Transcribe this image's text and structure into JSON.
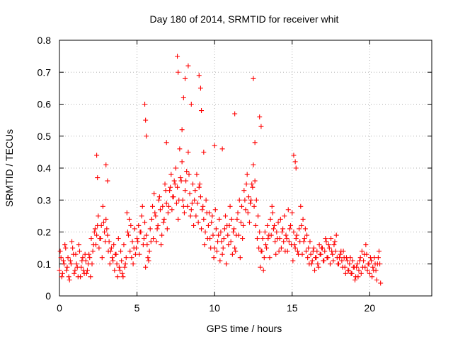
{
  "chart_data": {
    "type": "scatter",
    "title": "Day 180 of 2014, SRMTID for receiver whit",
    "xlabel": "GPS time / hours",
    "ylabel": "SRMTID / TECUs",
    "xlim": [
      0,
      24
    ],
    "ylim": [
      0,
      0.8
    ],
    "xticks": [
      0,
      5,
      10,
      15,
      20
    ],
    "xtick_labels": [
      "0",
      "5",
      "10",
      "15",
      "20"
    ],
    "yticks": [
      0,
      0.1,
      0.2,
      0.3,
      0.4,
      0.5,
      0.6,
      0.7,
      0.8
    ],
    "ytick_labels": [
      "0",
      "0.1",
      "0.2",
      "0.3",
      "0.4",
      "0.5",
      "0.6",
      "0.7",
      "0.8"
    ],
    "grid": true,
    "marker": "+",
    "colors": {
      "series": "#ff0000",
      "grid": "#b0b0b0",
      "axis": "#000000"
    },
    "series": [
      {
        "name": "SRMTID",
        "x": [
          0.0,
          0.1,
          0.2,
          0.3,
          0.4,
          0.5,
          0.6,
          0.7,
          0.8,
          0.9,
          1.0,
          1.1,
          1.2,
          1.3,
          1.4,
          1.5,
          1.6,
          1.7,
          1.8,
          1.9,
          2.0,
          2.1,
          2.2,
          2.3,
          2.4,
          2.5,
          2.6,
          2.7,
          2.8,
          2.9,
          3.0,
          3.1,
          3.2,
          3.3,
          3.4,
          3.5,
          3.6,
          3.7,
          3.8,
          3.9,
          4.0,
          4.1,
          4.2,
          4.3,
          4.4,
          4.5,
          4.6,
          4.7,
          4.8,
          4.9,
          5.0,
          5.1,
          5.2,
          5.3,
          5.4,
          5.5,
          5.6,
          5.7,
          5.8,
          5.9,
          6.0,
          6.1,
          6.2,
          6.3,
          6.4,
          6.5,
          6.6,
          6.7,
          6.8,
          6.9,
          7.0,
          7.1,
          7.2,
          7.3,
          7.4,
          7.5,
          7.6,
          7.7,
          7.8,
          7.9,
          8.0,
          8.1,
          8.2,
          8.3,
          8.4,
          8.5,
          8.6,
          8.7,
          8.8,
          8.9,
          9.0,
          9.1,
          9.2,
          9.3,
          9.4,
          9.5,
          9.6,
          9.7,
          9.8,
          9.9,
          10.0,
          10.1,
          10.2,
          10.3,
          10.4,
          10.5,
          10.6,
          10.7,
          10.8,
          10.9,
          11.0,
          11.1,
          11.2,
          11.3,
          11.4,
          11.5,
          11.6,
          11.7,
          11.8,
          11.9,
          12.0,
          12.1,
          12.2,
          12.3,
          12.4,
          12.5,
          12.6,
          12.7,
          12.8,
          12.9,
          13.0,
          13.1,
          13.2,
          13.3,
          13.4,
          13.5,
          13.6,
          13.7,
          13.8,
          13.9,
          14.0,
          14.1,
          14.2,
          14.3,
          14.4,
          14.5,
          14.6,
          14.7,
          14.8,
          14.9,
          15.0,
          15.1,
          15.2,
          15.3,
          15.4,
          15.5,
          15.6,
          15.7,
          15.8,
          15.9,
          16.0,
          16.1,
          16.2,
          16.3,
          16.4,
          16.5,
          16.6,
          16.7,
          16.8,
          16.9,
          17.0,
          17.1,
          17.2,
          17.3,
          17.4,
          17.5,
          17.6,
          17.7,
          17.8,
          17.9,
          18.0,
          18.1,
          18.2,
          18.3,
          18.4,
          18.5,
          18.6,
          18.7,
          18.8,
          18.9,
          19.0,
          19.1,
          19.2,
          19.3,
          19.4,
          19.5,
          19.6,
          19.7,
          19.8,
          19.9,
          20.0,
          20.1,
          20.2,
          20.3,
          20.4,
          20.5,
          20.6,
          20.7,
          0.05,
          0.15,
          0.25,
          0.35,
          0.45,
          0.55,
          0.65,
          0.75,
          0.85,
          0.95,
          1.05,
          1.15,
          1.25,
          1.35,
          1.45,
          1.55,
          1.65,
          1.75,
          1.85,
          1.95,
          2.05,
          2.15,
          2.25,
          2.35,
          2.45,
          2.55,
          2.65,
          2.75,
          2.85,
          2.95,
          3.05,
          3.15,
          3.25,
          3.35,
          3.45,
          3.55,
          3.65,
          3.75,
          3.85,
          3.95,
          4.05,
          4.15,
          4.25,
          4.35,
          4.45,
          4.55,
          4.65,
          4.75,
          4.85,
          4.95,
          5.05,
          5.15,
          5.25,
          5.35,
          5.45,
          5.55,
          5.65,
          5.75,
          5.85,
          5.95,
          6.05,
          6.15,
          6.25,
          6.35,
          6.45,
          6.55,
          6.65,
          6.75,
          6.85,
          6.95,
          7.05,
          7.15,
          7.25,
          7.35,
          7.45,
          7.55,
          7.65,
          7.75,
          7.85,
          7.95,
          8.05,
          8.15,
          8.25,
          8.35,
          8.45,
          8.55,
          8.65,
          8.75,
          8.85,
          8.95,
          9.05,
          9.15,
          9.25,
          9.35,
          9.45,
          9.55,
          9.65,
          9.75,
          9.85,
          9.95,
          10.05,
          10.15,
          10.25,
          10.35,
          10.45,
          10.55,
          10.65,
          10.75,
          10.85,
          10.95,
          11.05,
          11.15,
          11.25,
          11.35,
          11.45,
          11.55,
          11.65,
          11.75,
          11.85,
          11.95,
          12.05,
          12.15,
          12.25,
          12.35,
          12.45,
          12.55,
          12.65,
          12.75,
          12.85,
          12.95,
          13.05,
          13.15,
          13.25,
          13.35,
          13.45,
          13.55,
          13.65,
          13.75,
          13.85,
          13.95,
          14.05,
          14.15,
          14.25,
          14.35,
          14.45,
          14.55,
          14.65,
          14.75,
          14.85,
          14.95,
          15.05,
          15.15,
          15.25,
          15.35,
          15.45,
          15.55,
          15.65,
          15.75,
          15.85,
          15.95,
          16.05,
          16.15,
          16.25,
          16.35,
          16.45,
          16.55,
          16.65,
          16.75,
          16.85,
          16.95,
          17.05,
          17.15,
          17.25,
          17.35,
          17.45,
          17.55,
          17.65,
          17.75,
          17.85,
          17.95,
          18.05,
          18.15,
          18.25,
          18.35,
          18.45,
          18.55,
          18.65,
          18.75,
          18.85,
          18.95,
          19.05,
          19.15,
          19.25,
          19.35,
          19.45,
          19.55,
          19.65,
          19.75,
          19.85,
          19.95,
          20.05,
          20.15,
          20.25,
          20.35,
          20.45,
          20.55,
          20.65,
          2.4,
          2.45,
          3.0,
          3.1,
          5.5,
          5.55,
          5.6,
          7.6,
          7.65,
          8.1,
          8.3,
          9.0,
          9.1,
          9.15,
          11.3,
          12.5,
          12.6,
          12.9,
          13.0,
          15.1,
          15.2,
          15.25,
          8.0,
          8.5,
          7.9,
          9.3,
          10.0,
          6.9,
          10.5
        ],
        "y": [
          0.08,
          0.12,
          0.07,
          0.1,
          0.15,
          0.09,
          0.06,
          0.11,
          0.17,
          0.13,
          0.08,
          0.1,
          0.06,
          0.14,
          0.09,
          0.12,
          0.07,
          0.11,
          0.08,
          0.13,
          0.06,
          0.1,
          0.16,
          0.21,
          0.19,
          0.25,
          0.18,
          0.22,
          0.28,
          0.2,
          0.24,
          0.19,
          0.17,
          0.14,
          0.12,
          0.16,
          0.13,
          0.1,
          0.18,
          0.08,
          0.11,
          0.06,
          0.09,
          0.12,
          0.2,
          0.24,
          0.22,
          0.17,
          0.15,
          0.13,
          0.18,
          0.22,
          0.2,
          0.25,
          0.16,
          0.23,
          0.19,
          0.12,
          0.14,
          0.17,
          0.28,
          0.32,
          0.25,
          0.21,
          0.3,
          0.27,
          0.19,
          0.23,
          0.35,
          0.29,
          0.26,
          0.33,
          0.38,
          0.31,
          0.36,
          0.4,
          0.34,
          0.3,
          0.37,
          0.42,
          0.28,
          0.33,
          0.39,
          0.45,
          0.32,
          0.27,
          0.35,
          0.3,
          0.25,
          0.29,
          0.34,
          0.31,
          0.27,
          0.24,
          0.2,
          0.26,
          0.22,
          0.18,
          0.23,
          0.19,
          0.15,
          0.21,
          0.17,
          0.24,
          0.2,
          0.13,
          0.18,
          0.25,
          0.22,
          0.16,
          0.28,
          0.24,
          0.2,
          0.15,
          0.19,
          0.26,
          0.3,
          0.23,
          0.18,
          0.33,
          0.27,
          0.38,
          0.31,
          0.29,
          0.35,
          0.41,
          0.36,
          0.3,
          0.25,
          0.2,
          0.14,
          0.18,
          0.12,
          0.16,
          0.22,
          0.19,
          0.24,
          0.28,
          0.21,
          0.17,
          0.2,
          0.23,
          0.18,
          0.15,
          0.21,
          0.25,
          0.19,
          0.14,
          0.17,
          0.22,
          0.26,
          0.2,
          0.15,
          0.19,
          0.13,
          0.17,
          0.22,
          0.24,
          0.18,
          0.14,
          0.12,
          0.1,
          0.13,
          0.11,
          0.15,
          0.12,
          0.14,
          0.09,
          0.13,
          0.15,
          0.11,
          0.14,
          0.17,
          0.12,
          0.15,
          0.18,
          0.13,
          0.16,
          0.14,
          0.12,
          0.1,
          0.13,
          0.11,
          0.14,
          0.09,
          0.12,
          0.08,
          0.1,
          0.07,
          0.11,
          0.09,
          0.06,
          0.1,
          0.08,
          0.12,
          0.14,
          0.11,
          0.09,
          0.13,
          0.1,
          0.07,
          0.11,
          0.09,
          0.12,
          0.08,
          0.1,
          0.14,
          0.04,
          0.14,
          0.06,
          0.11,
          0.16,
          0.08,
          0.12,
          0.05,
          0.1,
          0.15,
          0.07,
          0.13,
          0.09,
          0.16,
          0.06,
          0.11,
          0.08,
          0.13,
          0.07,
          0.1,
          0.12,
          0.18,
          0.14,
          0.2,
          0.16,
          0.22,
          0.15,
          0.18,
          0.12,
          0.23,
          0.17,
          0.21,
          0.14,
          0.1,
          0.15,
          0.11,
          0.08,
          0.13,
          0.06,
          0.09,
          0.14,
          0.07,
          0.16,
          0.1,
          0.26,
          0.19,
          0.14,
          0.12,
          0.1,
          0.21,
          0.15,
          0.17,
          0.13,
          0.2,
          0.28,
          0.18,
          0.09,
          0.16,
          0.11,
          0.21,
          0.24,
          0.18,
          0.26,
          0.17,
          0.22,
          0.31,
          0.16,
          0.28,
          0.24,
          0.33,
          0.21,
          0.28,
          0.34,
          0.27,
          0.31,
          0.35,
          0.29,
          0.24,
          0.46,
          0.36,
          0.3,
          0.26,
          0.36,
          0.28,
          0.38,
          0.25,
          0.29,
          0.22,
          0.33,
          0.38,
          0.23,
          0.35,
          0.21,
          0.28,
          0.16,
          0.3,
          0.18,
          0.26,
          0.15,
          0.25,
          0.12,
          0.27,
          0.14,
          0.19,
          0.11,
          0.17,
          0.15,
          0.21,
          0.1,
          0.19,
          0.22,
          0.17,
          0.13,
          0.21,
          0.14,
          0.24,
          0.19,
          0.12,
          0.28,
          0.22,
          0.3,
          0.35,
          0.26,
          0.23,
          0.3,
          0.34,
          0.28,
          0.22,
          0.18,
          0.15,
          0.09,
          0.14,
          0.08,
          0.2,
          0.15,
          0.18,
          0.12,
          0.19,
          0.26,
          0.22,
          0.13,
          0.18,
          0.14,
          0.24,
          0.2,
          0.17,
          0.14,
          0.18,
          0.27,
          0.21,
          0.16,
          0.11,
          0.16,
          0.18,
          0.14,
          0.21,
          0.28,
          0.13,
          0.17,
          0.21,
          0.19,
          0.15,
          0.17,
          0.1,
          0.14,
          0.08,
          0.12,
          0.1,
          0.16,
          0.13,
          0.15,
          0.11,
          0.18,
          0.12,
          0.16,
          0.1,
          0.14,
          0.11,
          0.17,
          0.19,
          0.1,
          0.12,
          0.14,
          0.09,
          0.12,
          0.07,
          0.11,
          0.08,
          0.12,
          0.07,
          0.09,
          0.05,
          0.09,
          0.06,
          0.11,
          0.07,
          0.09,
          0.13,
          0.16,
          0.08,
          0.1,
          0.12,
          0.06,
          0.08,
          0.1,
          0.05,
          0.12,
          0.1,
          0.44,
          0.37,
          0.41,
          0.36,
          0.6,
          0.55,
          0.5,
          0.75,
          0.7,
          0.68,
          0.72,
          0.69,
          0.65,
          0.58,
          0.57,
          0.68,
          0.48,
          0.56,
          0.53,
          0.44,
          0.42,
          0.4,
          0.62,
          0.6,
          0.52,
          0.45,
          0.47,
          0.48,
          0.46
        ]
      }
    ]
  }
}
